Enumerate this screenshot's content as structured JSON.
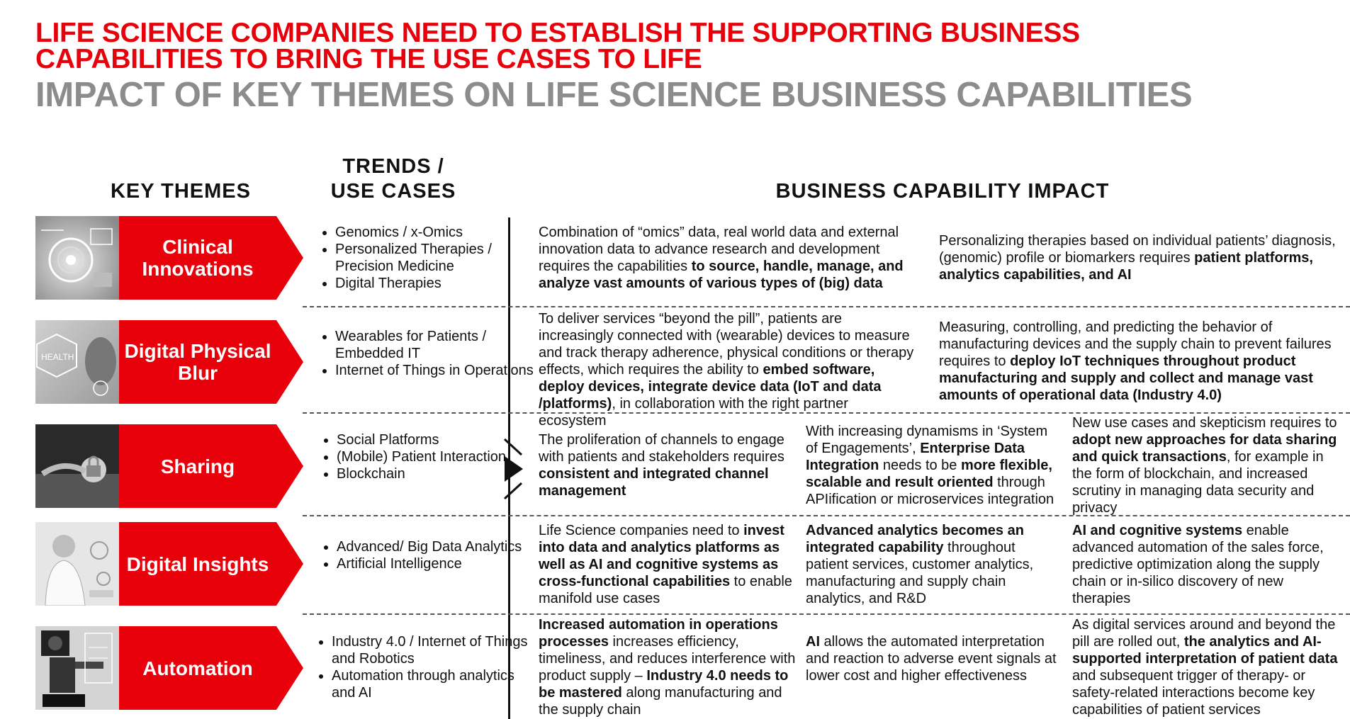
{
  "title": {
    "line1": "LIFE SCIENCE COMPANIES NEED TO ESTABLISH THE SUPPORTING BUSINESS",
    "line2": "CAPABILITIES TO BRING THE USE CASES TO LIFE",
    "subtitle": "IMPACT OF KEY THEMES ON LIFE SCIENCE BUSINESS CAPABILITIES"
  },
  "headers": {
    "key_themes": "KEY THEMES",
    "trends_line1": "TRENDS /",
    "trends_line2": "USE CASES",
    "impact": "BUSINESS CAPABILITY IMPACT"
  },
  "colors": {
    "accent_red": "#e8000b",
    "subtitle_gray": "#8c8c8c"
  },
  "rows": [
    {
      "theme": "Clinical Innovations",
      "image_icon": "clinical-tech-photo",
      "trends": [
        "Genomics / x-Omics",
        "Personalized Therapies / Precision Medicine",
        "Digital Therapies"
      ],
      "impacts": [
        [
          {
            "t": "Combination of “omics” data, real world data and external innovation data to advance research and development requires the capabilities ",
            "b": false
          },
          {
            "t": "to source, handle, manage, and analyze vast amounts of various types of (big) data",
            "b": true
          }
        ],
        [
          {
            "t": "Personalizing therapies based on individual patients’ diagnosis, (genomic) profile or biomarkers requires ",
            "b": false
          },
          {
            "t": "patient platforms, analytics capabilities, and AI",
            "b": true
          }
        ]
      ]
    },
    {
      "theme": "Digital Physical Blur",
      "image_icon": "health-interface-photo",
      "trends": [
        "Wearables for Patients / Embedded IT",
        "Internet of Things in Operations"
      ],
      "impacts": [
        [
          {
            "t": "To deliver services “beyond the pill”, patients are increasingly connected with (wearable) devices to measure and track therapy adherence, physical conditions or therapy effects, which requires the ability to ",
            "b": false
          },
          {
            "t": "embed software, deploy devices, integrate device data (IoT and data /platforms)",
            "b": true
          },
          {
            "t": ", in collaboration with the right partner ecosystem",
            "b": false
          }
        ],
        [
          {
            "t": "Measuring, controlling, and predicting the behavior of manufacturing devices and the supply chain to prevent failures requires to ",
            "b": false
          },
          {
            "t": "deploy IoT techniques throughout product manufacturing and supply and collect and manage vast amounts of operational data (Industry 4.0)",
            "b": true
          }
        ]
      ]
    },
    {
      "theme": "Sharing",
      "image_icon": "secure-sharing-photo",
      "trends": [
        "Social Platforms",
        "(Mobile) Patient Interaction",
        "Blockchain"
      ],
      "impacts": [
        [
          {
            "t": "The proliferation of channels to engage with patients and stakeholders requires ",
            "b": false
          },
          {
            "t": "consistent and integrated channel management",
            "b": true
          }
        ],
        [
          {
            "t": "With increasing dynamisms in ‘System of Engagements’, ",
            "b": false
          },
          {
            "t": "Enterprise Data Integration",
            "b": true
          },
          {
            "t": " needs to be ",
            "b": false
          },
          {
            "t": "more flexible, scalable and result oriented",
            "b": true
          },
          {
            "t": " through APIification or microservices integration",
            "b": false
          }
        ],
        [
          {
            "t": "New use cases and skepticism requires to ",
            "b": false
          },
          {
            "t": "adopt new approaches for data sharing and quick transactions",
            "b": true
          },
          {
            "t": ", for example in the form of blockchain, and increased scrutiny in managing data security and privacy",
            "b": false
          }
        ]
      ]
    },
    {
      "theme": "Digital Insights",
      "image_icon": "scientist-photo",
      "trends": [
        "Advanced/ Big Data Analytics",
        "Artificial Intelligence"
      ],
      "impacts": [
        [
          {
            "t": "Life Science companies need to ",
            "b": false
          },
          {
            "t": "invest into data and analytics platforms as well as AI and cognitive systems as cross-functional capabilities",
            "b": true
          },
          {
            "t": " to enable manifold use cases",
            "b": false
          }
        ],
        [
          {
            "t": "Advanced analytics becomes an integrated capability",
            "b": true
          },
          {
            "t": " throughout patient services, customer analytics, manufacturing and supply chain analytics, and R&D",
            "b": false
          }
        ],
        [
          {
            "t": "AI and cognitive systems",
            "b": true
          },
          {
            "t": " enable advanced automation of the sales force, predictive optimization along the supply chain or in-silico discovery of new therapies",
            "b": false
          }
        ]
      ]
    },
    {
      "theme": "Automation",
      "image_icon": "robot-photo",
      "trends": [
        "Industry 4.0 / Internet of Things and Robotics",
        "Automation through analytics and AI"
      ],
      "impacts": [
        [
          {
            "t": "Increased automation in operations processes",
            "b": true
          },
          {
            "t": " increases efficiency, timeliness, and reduces interference with product supply – ",
            "b": false
          },
          {
            "t": "Industry 4.0 needs to be mastered",
            "b": true
          },
          {
            "t": " along manufacturing and the supply chain",
            "b": false
          }
        ],
        [
          {
            "t": "AI",
            "b": true
          },
          {
            "t": " allows the automated interpretation and reaction to adverse event signals at lower cost and higher effectiveness",
            "b": false
          }
        ],
        [
          {
            "t": "As digital services around and beyond the pill are rolled out, ",
            "b": false
          },
          {
            "t": "the analytics and AI-supported interpretation of patient data",
            "b": true
          },
          {
            "t": " and subsequent trigger of therapy- or safety-related interactions become key capabilities of patient services",
            "b": false
          }
        ]
      ]
    }
  ]
}
